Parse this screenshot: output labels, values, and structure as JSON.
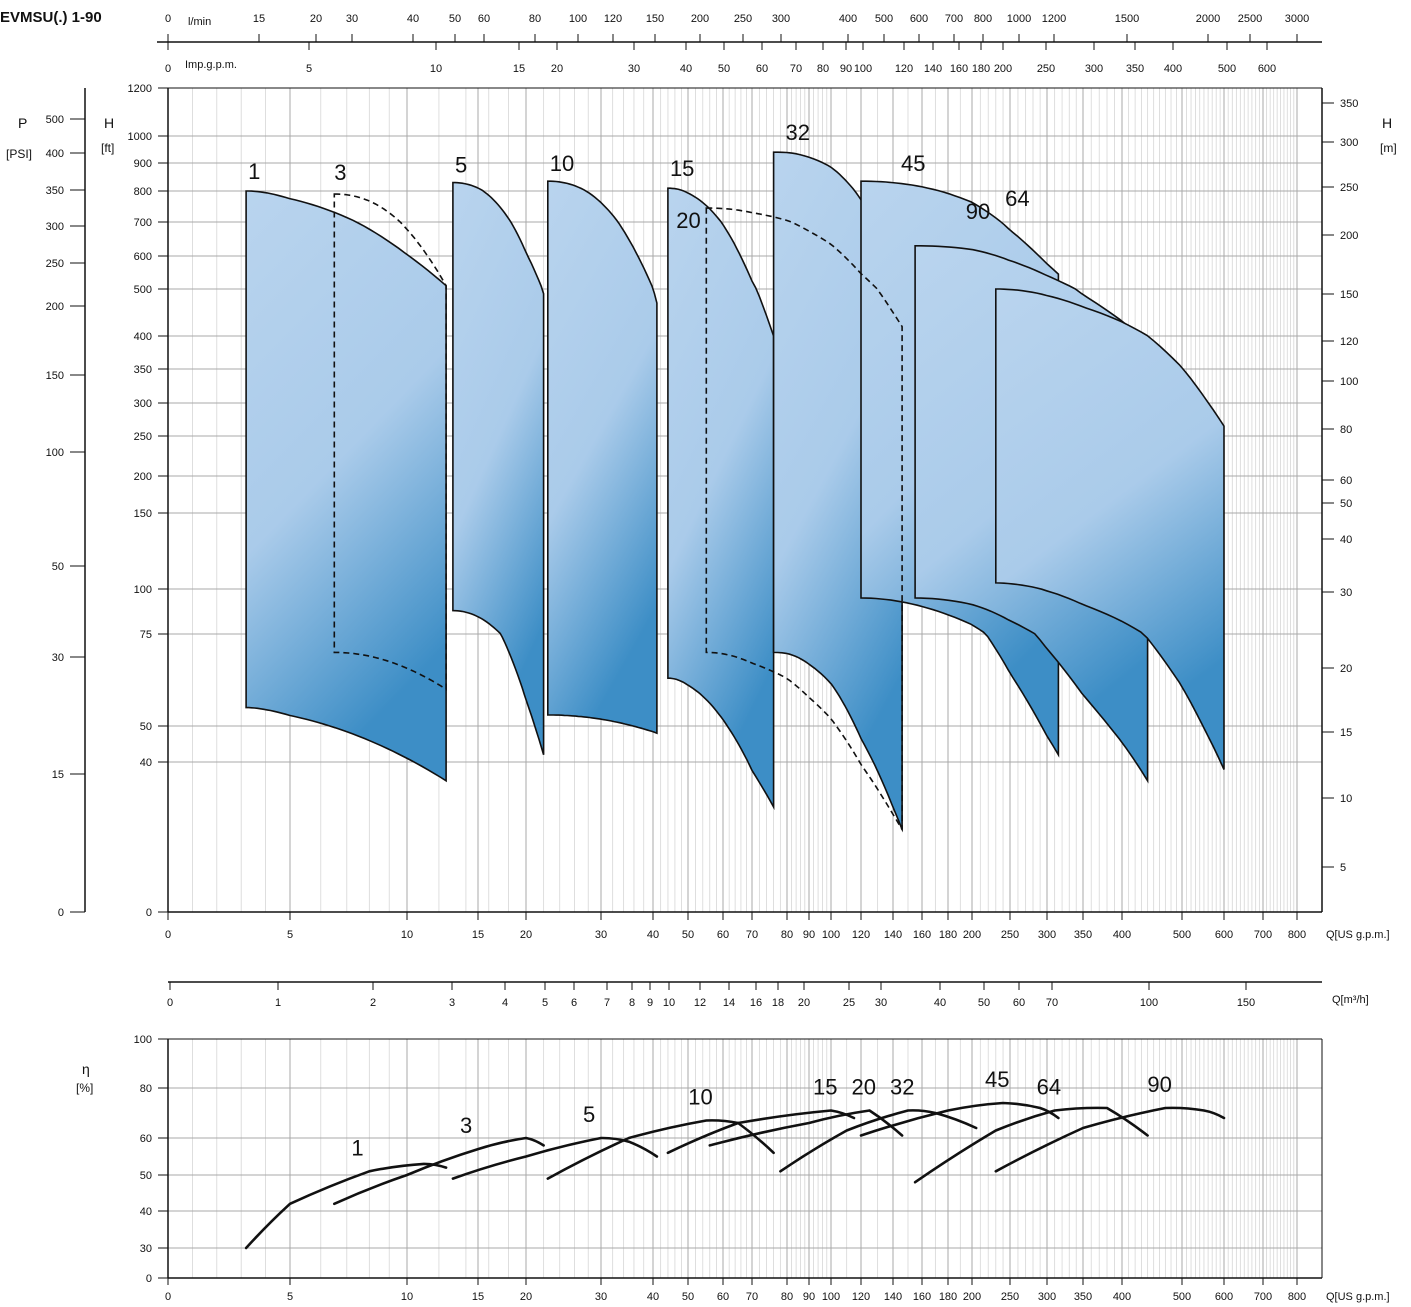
{
  "title": "EVMSU(.) 1-90",
  "chart_data": [
    {
      "type": "area",
      "name": "performance-map",
      "x_scale": "log",
      "y_scale": "log-like",
      "axes": {
        "bottom_us_gpm": {
          "label": "Q[US g.p.m.]",
          "ticks": [
            "0",
            "5",
            "10",
            "15",
            "20",
            "30",
            "40",
            "50",
            "60",
            "70",
            "80",
            "90",
            "100",
            "120",
            "140",
            "160",
            "180",
            "200",
            "250",
            "300",
            "350",
            "400",
            "500",
            "600",
            "700",
            "800"
          ]
        },
        "top_lmin": {
          "label": "l/min",
          "ticks": [
            "0",
            "15",
            "20",
            "30",
            "40",
            "50",
            "60",
            "80",
            "100",
            "120",
            "150",
            "200",
            "250",
            "300",
            "400",
            "500",
            "600",
            "700",
            "800",
            "1000",
            "1200",
            "1500",
            "2000",
            "2500",
            "3000"
          ]
        },
        "top_imp": {
          "label": "Imp.g.p.m.",
          "ticks": [
            "0",
            "5",
            "10",
            "15",
            "20",
            "30",
            "40",
            "50",
            "60",
            "70",
            "80",
            "90",
            "100",
            "120",
            "140",
            "160",
            "180",
            "200",
            "250",
            "300",
            "350",
            "400",
            "500",
            "600"
          ]
        },
        "left_ft": {
          "label_top": "H",
          "label_unit": "[ft]",
          "ticks": [
            "0",
            "40",
            "50",
            "75",
            "100",
            "150",
            "200",
            "250",
            "300",
            "350",
            "400",
            "500",
            "600",
            "700",
            "800",
            "900",
            "1000",
            "1200"
          ]
        },
        "left_psi": {
          "label_top": "P",
          "label_unit": "[PSI]",
          "ticks": [
            "0",
            "15",
            "30",
            "50",
            "100",
            "150",
            "200",
            "250",
            "300",
            "350",
            "400",
            "500"
          ]
        },
        "right_m": {
          "label_top": "H",
          "label_unit": "[m]",
          "ticks": [
            "5",
            "10",
            "15",
            "20",
            "30",
            "40",
            "50",
            "60",
            "80",
            "100",
            "120",
            "150",
            "200",
            "250",
            "300",
            "350"
          ]
        }
      },
      "series": [
        {
          "name": "1",
          "q_min": 3.2,
          "q_max": 12.5,
          "h_top_start": 800,
          "h_top_end": 510,
          "h_bottom_start": 55,
          "h_bottom_end": 35
        },
        {
          "name": "3",
          "q_min": 6.5,
          "q_max": 12.5,
          "h_top_start": 790,
          "h_top_end": 510,
          "h_bottom_start": 70,
          "h_bottom_end": 60,
          "dashed": true
        },
        {
          "name": "5",
          "q_min": 13,
          "q_max": 22,
          "h_top_start": 830,
          "h_top_end": 490,
          "h_bottom_start": 88,
          "h_bottom_end": 42
        },
        {
          "name": "10",
          "q_min": 22.5,
          "q_max": 41,
          "h_top_start": 835,
          "h_top_end": 470,
          "h_bottom_start": 53,
          "h_bottom_end": 48
        },
        {
          "name": "15",
          "q_min": 44,
          "q_max": 76,
          "h_top_start": 810,
          "h_top_end": 400,
          "h_bottom_start": 63,
          "h_bottom_end": 28
        },
        {
          "name": "20",
          "q_min": 55,
          "q_max": 146,
          "h_top_start": 745,
          "h_top_end": 420,
          "h_bottom_start": 70,
          "h_bottom_end": 22,
          "dashed": true
        },
        {
          "name": "32",
          "q_min": 76,
          "q_max": 146,
          "h_top_start": 940,
          "h_top_end": 570,
          "h_bottom_start": 70,
          "h_bottom_end": 22
        },
        {
          "name": "45",
          "q_min": 120,
          "q_max": 315,
          "h_top_start": 835,
          "h_top_end": 545,
          "h_bottom_start": 95,
          "h_bottom_end": 42
        },
        {
          "name": "64",
          "q_min": 155,
          "q_max": 440,
          "h_top_start": 630,
          "h_top_end": 385,
          "h_bottom_start": 95,
          "h_bottom_end": 35
        },
        {
          "name": "90",
          "q_min": 230,
          "q_max": 600,
          "h_top_start": 500,
          "h_top_end": 265,
          "h_bottom_start": 104,
          "h_bottom_end": 38
        }
      ]
    },
    {
      "type": "line",
      "name": "efficiency",
      "x_scale": "log",
      "ylabel": "η",
      "yunit": "[%]",
      "y_ticks": [
        "0",
        "30",
        "40",
        "50",
        "60",
        "80",
        "100"
      ],
      "xlabel": "Q[US g.p.m.]",
      "series": [
        {
          "name": "1",
          "points": [
            [
              3.2,
              30
            ],
            [
              5,
              42
            ],
            [
              8,
              51
            ],
            [
              11,
              53
            ],
            [
              12.5,
              52
            ]
          ]
        },
        {
          "name": "3",
          "points": [
            [
              6.5,
              42
            ],
            [
              10,
              50
            ],
            [
              15,
              57
            ],
            [
              20,
              60
            ],
            [
              22,
              58
            ]
          ]
        },
        {
          "name": "5",
          "points": [
            [
              13,
              49
            ],
            [
              20,
              55
            ],
            [
              30,
              60
            ],
            [
              35,
              59
            ],
            [
              41,
              55
            ]
          ]
        },
        {
          "name": "10",
          "points": [
            [
              22.5,
              49
            ],
            [
              35,
              60
            ],
            [
              55,
              67
            ],
            [
              65,
              66
            ],
            [
              76,
              56
            ]
          ]
        },
        {
          "name": "15",
          "points": [
            [
              44,
              56
            ],
            [
              65,
              66
            ],
            [
              100,
              71
            ],
            [
              115,
              68
            ]
          ]
        },
        {
          "name": "20",
          "points": [
            [
              56,
              58
            ],
            [
              90,
              66
            ],
            [
              125,
              71
            ],
            [
              146,
              61
            ]
          ]
        },
        {
          "name": "32",
          "points": [
            [
              78,
              51
            ],
            [
              110,
              63
            ],
            [
              150,
              71
            ],
            [
              170,
              70
            ],
            [
              205,
              64
            ]
          ]
        },
        {
          "name": "45",
          "points": [
            [
              120,
              61
            ],
            [
              180,
              71
            ],
            [
              240,
              74
            ],
            [
              290,
              72
            ],
            [
              315,
              68
            ]
          ]
        },
        {
          "name": "64",
          "points": [
            [
              155,
              48
            ],
            [
              230,
              63
            ],
            [
              310,
              71
            ],
            [
              380,
              72
            ],
            [
              440,
              61
            ]
          ]
        },
        {
          "name": "90",
          "points": [
            [
              230,
              51
            ],
            [
              350,
              64
            ],
            [
              470,
              72
            ],
            [
              550,
              71
            ],
            [
              600,
              68
            ]
          ]
        }
      ]
    }
  ],
  "qm3h_axis": {
    "label": "Q[m³/h]",
    "ticks": [
      "0",
      "1",
      "2",
      "3",
      "4",
      "5",
      "6",
      "7",
      "8",
      "9",
      "10",
      "12",
      "14",
      "16",
      "18",
      "20",
      "25",
      "30",
      "40",
      "50",
      "60",
      "70",
      "100",
      "150"
    ]
  }
}
